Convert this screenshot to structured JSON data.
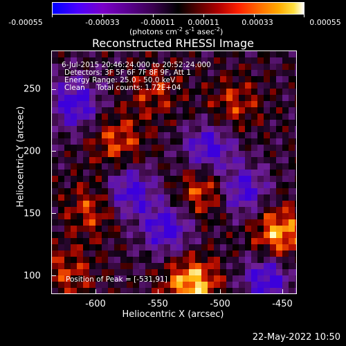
{
  "colorbar": {
    "labels": [
      "-0.00055",
      "-0.00033",
      "-0.00011",
      "0.00011",
      "0.00033",
      "0.00055"
    ],
    "units_text": "(photons cm",
    "units_sup1": "-2",
    "units_mid": " s",
    "units_sup2": "-1",
    "units_end": " asec",
    "units_sup3": "-2",
    "units_close": ")"
  },
  "title": "Reconstructed RHESSI Image",
  "annotations": {
    "time": "6-Jul-2015 20:46:24.000 to 20:52:24.000",
    "detectors": "Detectors: 3F 5F 6F 7F 8F 9F, Att 1",
    "energy": "Energy Range: 25.0 - 50.0 keV",
    "clean": "Clean     Total counts: 1.72E+04",
    "peak": "Position of Peak = [-531,91]"
  },
  "chart_data": {
    "type": "heatmap",
    "title": "Reconstructed RHESSI Image",
    "xlabel": "Heliocentric X (arcsec)",
    "ylabel": "Heliocentric Y (arcsec)",
    "xlim": [
      -632,
      -436
    ],
    "ylim": [
      86,
      282
    ],
    "x_ticks": [
      "-600",
      "-550",
      "-500",
      "-450"
    ],
    "y_ticks": [
      "100",
      "150",
      "200",
      "250"
    ],
    "colorscale_range": [
      -0.00055,
      0.00055
    ]
  },
  "timestamp": "22-May-2022 10:50"
}
